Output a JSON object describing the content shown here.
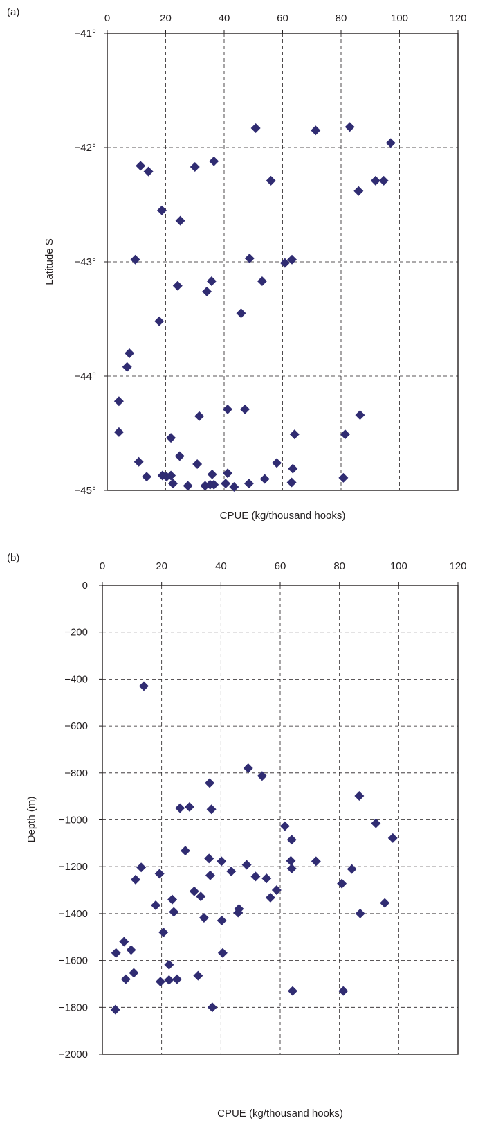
{
  "chart_data": [
    {
      "panel_label": "(a)",
      "type": "scatter",
      "xlabel": "CPUE (kg/thousand hooks)",
      "ylabel": "Latitude S",
      "xlim": [
        0,
        120
      ],
      "ylim": [
        -45,
        -41
      ],
      "x_ticks": [
        "0",
        "20",
        "40",
        "60",
        "80",
        "100",
        "120"
      ],
      "y_ticks": [
        "−41°",
        "−42°",
        "−43°",
        "−44°",
        "−45°"
      ],
      "x_tick_values": [
        0,
        20,
        40,
        60,
        80,
        100,
        120
      ],
      "y_tick_values": [
        -41,
        -42,
        -43,
        -44,
        -45
      ],
      "x_axis_position": "top",
      "grid": true,
      "marker": "diamond",
      "marker_color": "#302c72",
      "points": [
        [
          50.8,
          -41.83
        ],
        [
          71.3,
          -41.85
        ],
        [
          83.0,
          -41.82
        ],
        [
          97.0,
          -41.96
        ],
        [
          11.4,
          -42.16
        ],
        [
          14.1,
          -42.21
        ],
        [
          30.0,
          -42.17
        ],
        [
          36.5,
          -42.12
        ],
        [
          56.0,
          -42.29
        ],
        [
          91.8,
          -42.29
        ],
        [
          94.6,
          -42.29
        ],
        [
          86.0,
          -42.38
        ],
        [
          18.7,
          -42.55
        ],
        [
          25.0,
          -42.64
        ],
        [
          9.6,
          -42.98
        ],
        [
          48.7,
          -42.97
        ],
        [
          60.8,
          -43.01
        ],
        [
          63.2,
          -42.98
        ],
        [
          53.0,
          -43.17
        ],
        [
          24.1,
          -43.21
        ],
        [
          35.7,
          -43.17
        ],
        [
          34.1,
          -43.26
        ],
        [
          17.8,
          -43.52
        ],
        [
          45.8,
          -43.45
        ],
        [
          7.6,
          -43.8
        ],
        [
          6.8,
          -43.92
        ],
        [
          4.0,
          -44.22
        ],
        [
          41.2,
          -44.29
        ],
        [
          47.1,
          -44.29
        ],
        [
          31.5,
          -44.35
        ],
        [
          86.5,
          -44.34
        ],
        [
          4.0,
          -44.49
        ],
        [
          21.8,
          -44.54
        ],
        [
          64.1,
          -44.51
        ],
        [
          81.4,
          -44.51
        ],
        [
          24.8,
          -44.7
        ],
        [
          10.8,
          -44.75
        ],
        [
          30.8,
          -44.77
        ],
        [
          58.0,
          -44.76
        ],
        [
          63.5,
          -44.81
        ],
        [
          13.5,
          -44.88
        ],
        [
          18.9,
          -44.87
        ],
        [
          20.3,
          -44.88
        ],
        [
          21.8,
          -44.87
        ],
        [
          35.9,
          -44.86
        ],
        [
          41.2,
          -44.85
        ],
        [
          53.9,
          -44.9
        ],
        [
          80.8,
          -44.89
        ],
        [
          22.5,
          -44.94
        ],
        [
          27.6,
          -44.96
        ],
        [
          33.5,
          -44.96
        ],
        [
          35.2,
          -44.95
        ],
        [
          36.5,
          -44.95
        ],
        [
          40.5,
          -44.94
        ],
        [
          43.4,
          -44.97
        ],
        [
          48.5,
          -44.94
        ],
        [
          63.1,
          -44.93
        ]
      ]
    },
    {
      "panel_label": "(b)",
      "type": "scatter",
      "xlabel": "CPUE (kg/thousand hooks)",
      "ylabel": "Depth (m)",
      "xlim": [
        0,
        120
      ],
      "ylim": [
        -2000,
        0
      ],
      "x_ticks": [
        "0",
        "20",
        "40",
        "60",
        "80",
        "100",
        "120"
      ],
      "y_ticks": [
        "0",
        "−200",
        "−400",
        "−600",
        "−800",
        "−1000",
        "−1200",
        "−1400",
        "−1600",
        "−1800",
        "−2000"
      ],
      "x_tick_values": [
        0,
        20,
        40,
        60,
        80,
        100,
        120
      ],
      "y_tick_values": [
        0,
        -200,
        -400,
        -600,
        -800,
        -1000,
        -1200,
        -1400,
        -1600,
        -1800,
        -2000
      ],
      "x_axis_position": "top",
      "grid": true,
      "marker": "diamond",
      "marker_color": "#302c72",
      "points": [
        [
          14.0,
          -430
        ],
        [
          49.2,
          -780
        ],
        [
          53.9,
          -813
        ],
        [
          36.2,
          -843
        ],
        [
          86.7,
          -898
        ],
        [
          26.2,
          -950
        ],
        [
          29.4,
          -945
        ],
        [
          36.8,
          -955
        ],
        [
          92.3,
          -1015
        ],
        [
          61.6,
          -1027
        ],
        [
          63.9,
          -1085
        ],
        [
          98.0,
          -1078
        ],
        [
          28.0,
          -1132
        ],
        [
          36.0,
          -1165
        ],
        [
          40.2,
          -1177
        ],
        [
          48.7,
          -1192
        ],
        [
          63.6,
          -1175
        ],
        [
          72.1,
          -1177
        ],
        [
          13.1,
          -1203
        ],
        [
          63.9,
          -1208
        ],
        [
          84.2,
          -1210
        ],
        [
          43.5,
          -1220
        ],
        [
          19.3,
          -1230
        ],
        [
          36.4,
          -1237
        ],
        [
          51.7,
          -1242
        ],
        [
          55.4,
          -1250
        ],
        [
          11.2,
          -1255
        ],
        [
          80.8,
          -1272
        ],
        [
          31.0,
          -1305
        ],
        [
          58.8,
          -1300
        ],
        [
          33.2,
          -1327
        ],
        [
          56.7,
          -1332
        ],
        [
          23.6,
          -1340
        ],
        [
          18.0,
          -1365
        ],
        [
          95.3,
          -1355
        ],
        [
          46.1,
          -1380
        ],
        [
          24.1,
          -1393
        ],
        [
          45.8,
          -1396
        ],
        [
          87.0,
          -1400
        ],
        [
          34.3,
          -1418
        ],
        [
          40.3,
          -1430
        ],
        [
          20.6,
          -1480
        ],
        [
          7.3,
          -1520
        ],
        [
          9.7,
          -1555
        ],
        [
          4.6,
          -1568
        ],
        [
          40.6,
          -1568
        ],
        [
          22.5,
          -1618
        ],
        [
          10.6,
          -1653
        ],
        [
          32.3,
          -1665
        ],
        [
          7.9,
          -1680
        ],
        [
          22.5,
          -1683
        ],
        [
          25.2,
          -1680
        ],
        [
          19.6,
          -1690
        ],
        [
          64.2,
          -1730
        ],
        [
          81.3,
          -1730
        ],
        [
          37.1,
          -1800
        ],
        [
          4.4,
          -1810
        ]
      ]
    }
  ]
}
